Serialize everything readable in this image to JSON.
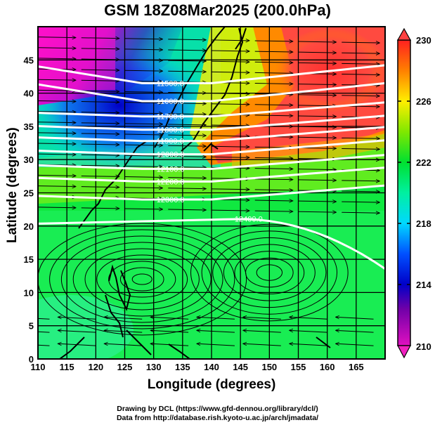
{
  "title": "GSM 18Z08Mar2025 (200.0hPa)",
  "chart_data": {
    "type": "heatmap",
    "title": "GSM 18Z08Mar2025 (200.0hPa)",
    "xlabel": "Longitude (degrees)",
    "ylabel": "Latitude  (degrees)",
    "xlim": [
      110,
      170
    ],
    "ylim": [
      0,
      50
    ],
    "xticks": [
      "110",
      "115",
      "120",
      "125",
      "130",
      "135",
      "140",
      "145",
      "150",
      "155",
      "160",
      "165"
    ],
    "yticks": [
      "0",
      "5",
      "10",
      "15",
      "20",
      "25",
      "30",
      "35",
      "40",
      "45"
    ],
    "grid": true,
    "colorbar": {
      "label_ticks": [
        "210",
        "214",
        "218",
        "222",
        "226",
        "230"
      ],
      "range": [
        210,
        230
      ],
      "position": "right",
      "colors": [
        "#ff1ad0",
        "#0000c8",
        "#00d8ff",
        "#00e040",
        "#ffee00",
        "#ff2020"
      ]
    },
    "contours": {
      "color": "#ffffff",
      "levels": [
        {
          "label": "11500.0",
          "lat_at_132": 41.5
        },
        {
          "label": "11600.0",
          "lat_at_132": 38.8
        },
        {
          "label": "11700.0",
          "lat_at_132": 36.5
        },
        {
          "label": "11800.0",
          "lat_at_132": 34.5
        },
        {
          "label": "11900.0",
          "lat_at_132": 32.8
        },
        {
          "label": "12000.0",
          "lat_at_132": 30.8
        },
        {
          "label": "12100.0",
          "lat_at_132": 28.6
        },
        {
          "label": "12200.0",
          "lat_at_132": 26.7
        },
        {
          "label": "12300.0",
          "lat_at_132": 24.0
        },
        {
          "label": "12400.0",
          "lat_at_132": 20.8
        }
      ]
    },
    "fields": [
      "temperature (K, shaded)",
      "geopotential height (m, white contours)",
      "wind streamlines (black)"
    ]
  },
  "credits": {
    "line1": "Drawing by DCL (https://www.gfd-dennou.org/library/dcl/)",
    "line2": "Data from http://database.rish.kyoto-u.ac.jp/arch/jmadata/"
  }
}
